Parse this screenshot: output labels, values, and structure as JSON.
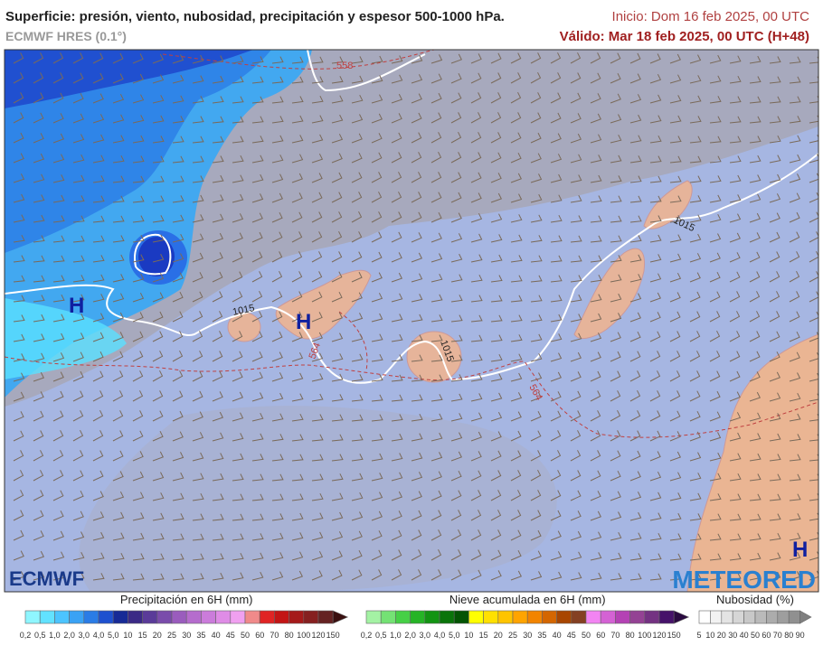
{
  "header": {
    "title": "Superficie: presión, viento, nubosidad, precipitación y espesor 500-1000 hPa.",
    "model": "ECMWF HRES (0.1°)",
    "start": "Inicio: Dom 16 feb 2025, 00 UTC",
    "valid": "Válido: Mar 18 feb 2025, 00 UTC (H+48)"
  },
  "map": {
    "labels": [
      "558",
      "564",
      "564",
      "1015",
      "1015",
      "1015",
      "H",
      "H",
      "H"
    ]
  },
  "logos": {
    "left": "ECMWF",
    "right": "METEORED"
  },
  "legends": [
    {
      "title": "Precipitación en 6H (mm)",
      "labels": [
        "0,2",
        "0,5",
        "1,0",
        "2,0",
        "3,0",
        "4,0",
        "5,0",
        "10",
        "15",
        "20",
        "25",
        "30",
        "35",
        "40",
        "45",
        "50",
        "60",
        "70",
        "80",
        "100",
        "120",
        "150"
      ],
      "colors": [
        "#8ff6ff",
        "#62e2ff",
        "#4cc4ff",
        "#3aa2f4",
        "#2a7ce6",
        "#1e50cf",
        "#172a96",
        "#3b2a86",
        "#5a3b99",
        "#7a4cab",
        "#9a5cbd",
        "#b56ccd",
        "#cb7cdb",
        "#df8ce6",
        "#f0a0f0",
        "#f08a8a",
        "#e02424",
        "#c31515",
        "#a51a1a",
        "#862020",
        "#652222"
      ],
      "arrow": "#3a1010"
    },
    {
      "title": "Nieve acumulada en 6H (mm)",
      "labels": [
        "0,2",
        "0,5",
        "1,0",
        "2,0",
        "3,0",
        "4,0",
        "5,0",
        "10",
        "15",
        "20",
        "25",
        "30",
        "35",
        "40",
        "45",
        "50",
        "60",
        "70",
        "80",
        "100",
        "120",
        "150"
      ],
      "colors": [
        "#a4f2a4",
        "#74e274",
        "#46d046",
        "#26b426",
        "#139413",
        "#0a740a",
        "#045404",
        "#ffff00",
        "#ffe000",
        "#ffc400",
        "#ffa400",
        "#f28400",
        "#d46600",
        "#a84600",
        "#844022",
        "#f284f2",
        "#d462d4",
        "#b442b4",
        "#944294",
        "#743282",
        "#46126a"
      ],
      "arrow": "#2a0a40"
    },
    {
      "title": "Nubosidad (%)",
      "labels": [
        "5",
        "10",
        "20",
        "30",
        "40",
        "50",
        "60",
        "70",
        "80",
        "90"
      ],
      "colors": [
        "#ffffff",
        "#f2f2f2",
        "#e4e4e4",
        "#d6d6d6",
        "#c8c8c8",
        "#bababa",
        "#acacac",
        "#9e9e9e",
        "#909090"
      ],
      "arrow": "#808080"
    }
  ]
}
